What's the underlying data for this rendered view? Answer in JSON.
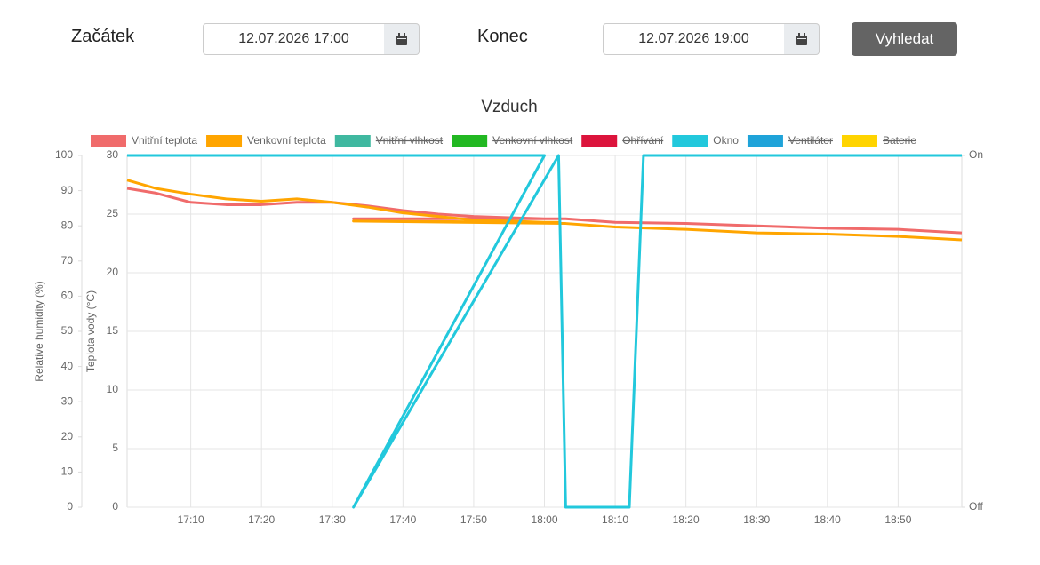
{
  "form": {
    "start_label": "Začátek",
    "start_value": "12.07.2026 17:00",
    "end_label": "Konec",
    "end_value": "12.07.2026 19:00",
    "button": "Vyhledat"
  },
  "chart_data": {
    "type": "line",
    "title": "Vzduch",
    "ylabel": "Teplota vody (°C)",
    "y3label": "Relative humidity (%)",
    "xlim": [
      "17:01",
      "18:59"
    ],
    "xticks": [
      "17:10",
      "17:20",
      "17:30",
      "17:40",
      "17:50",
      "18:00",
      "18:10",
      "18:20",
      "18:30",
      "18:40",
      "18:50"
    ],
    "ylim": [
      0,
      30
    ],
    "yticks": [
      0,
      5,
      10,
      15,
      20,
      25,
      30
    ],
    "y3lim": [
      0,
      100
    ],
    "y3ticks": [
      0,
      10,
      20,
      30,
      40,
      50,
      60,
      70,
      80,
      90,
      100
    ],
    "y2lim": [
      0,
      1
    ],
    "y2ticks": [
      {
        "value": 0,
        "label": "Off"
      },
      {
        "value": 1,
        "label": "On"
      }
    ],
    "grid": true,
    "series": [
      {
        "name": "Vnitřní teplota",
        "color": "#f06b6b",
        "x": [
          "17:01",
          "17:05",
          "17:10",
          "17:15",
          "17:20",
          "17:25",
          "17:30",
          "17:35",
          "17:40",
          "17:45",
          "17:50",
          "17:55",
          "18:00",
          "18:02",
          "17:33",
          "18:03",
          "18:10",
          "18:20",
          "18:30",
          "18:40",
          "18:50",
          "18:59"
        ],
        "values": [
          27.2,
          26.8,
          26.0,
          25.8,
          25.8,
          26.0,
          26.0,
          25.7,
          25.3,
          25.0,
          24.8,
          24.7,
          24.6,
          24.6,
          24.6,
          24.6,
          24.3,
          24.2,
          24.0,
          23.8,
          23.7,
          23.4
        ]
      },
      {
        "name": "Venkovní teplota",
        "color": "#ffa500",
        "x": [
          "17:01",
          "17:05",
          "17:10",
          "17:15",
          "17:20",
          "17:25",
          "17:30",
          "17:35",
          "17:40",
          "17:45",
          "17:50",
          "17:55",
          "18:00",
          "18:02",
          "17:33",
          "18:03",
          "18:10",
          "18:20",
          "18:30",
          "18:40",
          "18:50",
          "18:59"
        ],
        "values": [
          27.9,
          27.2,
          26.7,
          26.3,
          26.1,
          26.3,
          26.0,
          25.6,
          25.1,
          24.8,
          24.5,
          24.4,
          24.3,
          24.3,
          24.4,
          24.2,
          23.9,
          23.7,
          23.4,
          23.3,
          23.1,
          22.8
        ]
      },
      {
        "name": "Vnitřní vlhkost",
        "color": "#3fb8a0",
        "hidden": true
      },
      {
        "name": "Venkovní vlhkost",
        "color": "#22b822",
        "hidden": true
      },
      {
        "name": "Ohřívání",
        "color": "#dc143c",
        "hidden": true
      },
      {
        "name": "Okno",
        "color": "#22c8dc",
        "axis": "y2",
        "x": [
          "17:01",
          "18:00",
          "17:33",
          "18:02",
          "18:03",
          "18:12",
          "18:14",
          "18:59"
        ],
        "values": [
          1,
          1,
          0,
          1,
          0,
          0,
          1,
          1
        ]
      },
      {
        "name": "Ventilátor",
        "color": "#1fa3d9",
        "hidden": true
      },
      {
        "name": "Baterie",
        "color": "#ffd400",
        "hidden": true
      }
    ]
  }
}
